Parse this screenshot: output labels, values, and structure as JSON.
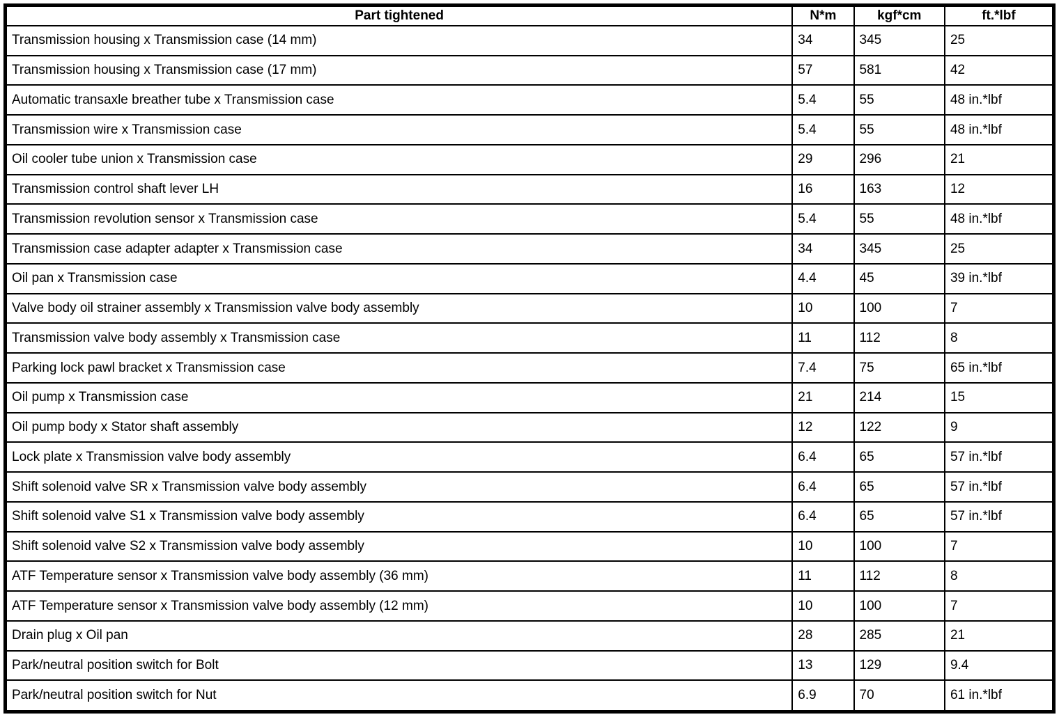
{
  "table": {
    "headers": [
      "Part tightened",
      "N*m",
      "kgf*cm",
      "ft.*lbf"
    ],
    "rows": [
      {
        "part": "Transmission housing x Transmission case (14 mm)",
        "nm": "34",
        "kgfcm": "345",
        "ftlbf": "25"
      },
      {
        "part": "Transmission housing x Transmission case (17 mm)",
        "nm": "57",
        "kgfcm": "581",
        "ftlbf": "42"
      },
      {
        "part": "Automatic transaxle breather tube x Transmission case",
        "nm": "5.4",
        "kgfcm": "55",
        "ftlbf": "48 in.*lbf"
      },
      {
        "part": "Transmission wire x Transmission case",
        "nm": "5.4",
        "kgfcm": "55",
        "ftlbf": "48 in.*lbf"
      },
      {
        "part": "Oil cooler tube union x Transmission case",
        "nm": "29",
        "kgfcm": "296",
        "ftlbf": "21"
      },
      {
        "part": "Transmission control shaft lever LH",
        "nm": "16",
        "kgfcm": "163",
        "ftlbf": "12"
      },
      {
        "part": "Transmission revolution sensor x Transmission case",
        "nm": "5.4",
        "kgfcm": "55",
        "ftlbf": "48 in.*lbf"
      },
      {
        "part": "Transmission case adapter adapter x Transmission case",
        "nm": "34",
        "kgfcm": "345",
        "ftlbf": "25"
      },
      {
        "part": "Oil pan x Transmission case",
        "nm": "4.4",
        "kgfcm": "45",
        "ftlbf": "39 in.*lbf"
      },
      {
        "part": "Valve body oil strainer assembly x Transmission valve body assembly",
        "nm": "10",
        "kgfcm": "100",
        "ftlbf": "7"
      },
      {
        "part": "Transmission valve body assembly x Transmission case",
        "nm": "11",
        "kgfcm": "112",
        "ftlbf": "8"
      },
      {
        "part": "Parking lock pawl bracket x Transmission case",
        "nm": "7.4",
        "kgfcm": "75",
        "ftlbf": "65 in.*lbf"
      },
      {
        "part": "Oil pump x Transmission case",
        "nm": "21",
        "kgfcm": "214",
        "ftlbf": "15"
      },
      {
        "part": "Oil pump body x Stator shaft assembly",
        "nm": "12",
        "kgfcm": "122",
        "ftlbf": "9"
      },
      {
        "part": "Lock plate x Transmission valve body assembly",
        "nm": "6.4",
        "kgfcm": "65",
        "ftlbf": "57 in.*lbf"
      },
      {
        "part": "Shift solenoid valve SR x Transmission valve body assembly",
        "nm": "6.4",
        "kgfcm": "65",
        "ftlbf": "57 in.*lbf"
      },
      {
        "part": "Shift solenoid valve S1 x Transmission valve body assembly",
        "nm": "6.4",
        "kgfcm": "65",
        "ftlbf": "57 in.*lbf"
      },
      {
        "part": "Shift solenoid valve S2 x Transmission valve body assembly",
        "nm": "10",
        "kgfcm": "100",
        "ftlbf": "7"
      },
      {
        "part": "ATF Temperature sensor x Transmission valve body assembly (36 mm)",
        "nm": "11",
        "kgfcm": "112",
        "ftlbf": "8"
      },
      {
        "part": "ATF Temperature sensor x Transmission valve body assembly (12 mm)",
        "nm": "10",
        "kgfcm": "100",
        "ftlbf": "7"
      },
      {
        "part": "Drain plug x Oil pan",
        "nm": "28",
        "kgfcm": "285",
        "ftlbf": "21"
      },
      {
        "part": "Park/neutral position switch for Bolt",
        "nm": "13",
        "kgfcm": "129",
        "ftlbf": "9.4"
      },
      {
        "part": "Park/neutral position switch for Nut",
        "nm": "6.9",
        "kgfcm": "70",
        "ftlbf": "61 in.*lbf"
      }
    ]
  }
}
